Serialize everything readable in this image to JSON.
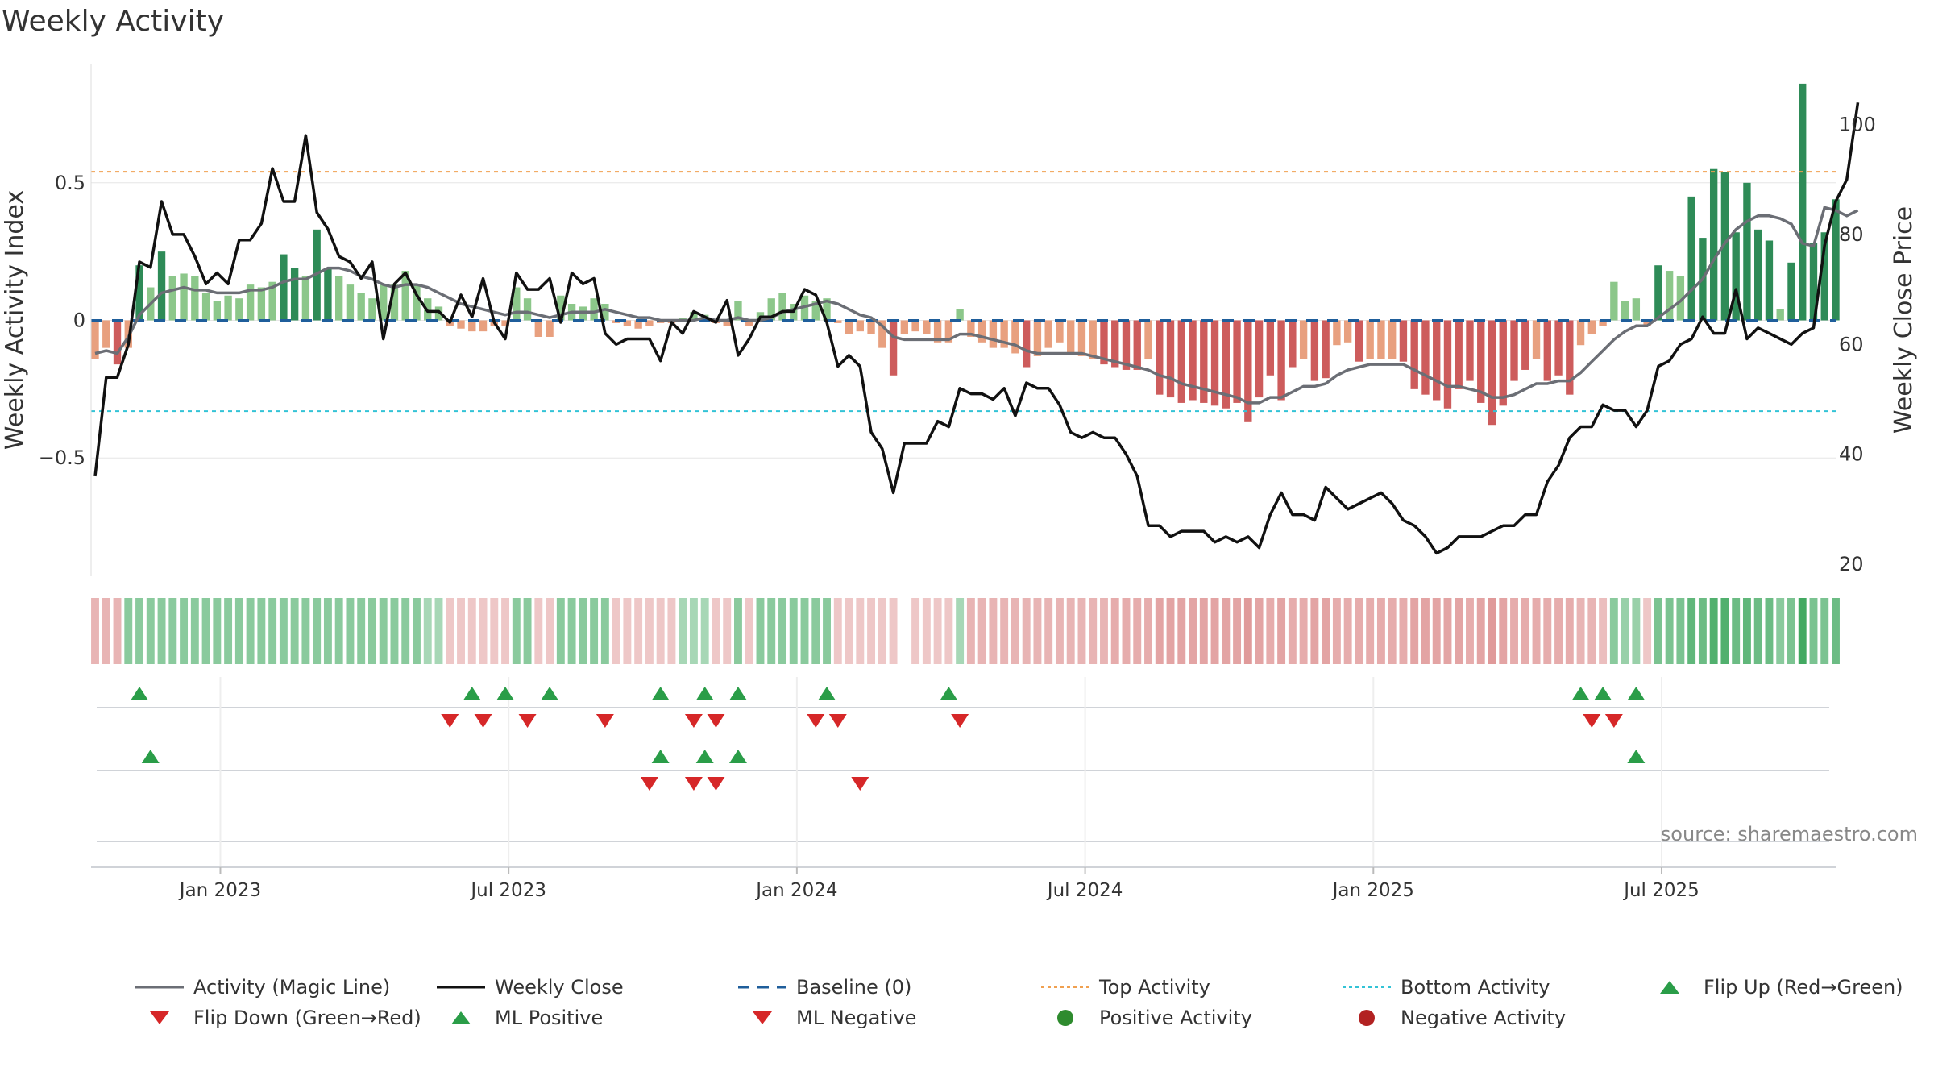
{
  "title": "Weekly Activity",
  "source": "source: sharemaestro.com",
  "colors": {
    "pos_strong": "#2e8b57",
    "pos_light": "#8cc78a",
    "neg_strong": "#cd5c5c",
    "neg_light": "#e8a07f",
    "magic": "#6b6e75",
    "close": "#111111",
    "baseline": "#1f5e9b",
    "top": "#f0a050",
    "bottom": "#33c3d6",
    "flip_up": "#2a9d48",
    "flip_down": "#d62728",
    "pos_dot": "#2e8b2e",
    "neg_dot": "#b22222"
  },
  "chart_data": {
    "type": "bar+line",
    "title": "Weekly Activity",
    "ylabel_left": "Weekly Activity Index",
    "ylabel_right": "Weekly Close Price",
    "yticks_left": [
      "0.5",
      "0",
      "−0.5"
    ],
    "yticks_right": [
      "100",
      "80",
      "60",
      "40",
      "20"
    ],
    "ylim_left": [
      -0.93,
      0.93
    ],
    "ylim_right": [
      20,
      108
    ],
    "xticks": [
      "Jan 2023",
      "Jul 2023",
      "Jan 2024",
      "Jul 2024",
      "Jan 2025",
      "Jul 2025"
    ],
    "top_activity": 0.54,
    "bottom_activity": -0.33,
    "activity": [
      -0.14,
      -0.1,
      -0.16,
      -0.1,
      0.2,
      0.12,
      0.25,
      0.16,
      0.17,
      0.16,
      0.1,
      0.07,
      0.09,
      0.08,
      0.13,
      0.12,
      0.14,
      0.24,
      0.19,
      0.16,
      0.33,
      0.19,
      0.16,
      0.13,
      0.1,
      0.08,
      0.13,
      0.13,
      0.18,
      0.13,
      0.08,
      0.05,
      -0.02,
      -0.03,
      -0.04,
      -0.04,
      -0.02,
      -0.02,
      0.12,
      0.08,
      -0.06,
      -0.06,
      0.09,
      0.06,
      0.05,
      0.08,
      0.06,
      -0.01,
      -0.02,
      -0.03,
      -0.02,
      -0.01,
      -0.01,
      0.01,
      0.03,
      0.02,
      -0.01,
      -0.02,
      0.07,
      -0.02,
      0.03,
      0.08,
      0.1,
      0.06,
      0.09,
      0.07,
      0.08,
      -0.01,
      -0.05,
      -0.04,
      -0.05,
      -0.1,
      -0.2,
      -0.05,
      -0.04,
      -0.05,
      -0.08,
      -0.08,
      0.04,
      -0.06,
      -0.08,
      -0.1,
      -0.1,
      -0.12,
      -0.17,
      -0.13,
      -0.1,
      -0.08,
      -0.12,
      -0.13,
      -0.14,
      -0.16,
      -0.17,
      -0.18,
      -0.18,
      -0.14,
      -0.27,
      -0.28,
      -0.3,
      -0.29,
      -0.3,
      -0.31,
      -0.32,
      -0.3,
      -0.37,
      -0.28,
      -0.2,
      -0.29,
      -0.17,
      -0.14,
      -0.22,
      -0.21,
      -0.09,
      -0.08,
      -0.15,
      -0.14,
      -0.14,
      -0.14,
      -0.15,
      -0.25,
      -0.27,
      -0.29,
      -0.32,
      -0.25,
      -0.22,
      -0.3,
      -0.38,
      -0.31,
      -0.22,
      -0.18,
      -0.14,
      -0.22,
      -0.2,
      -0.27,
      -0.09,
      -0.05,
      -0.02,
      0.14,
      0.07,
      0.08,
      -0.02,
      0.2,
      0.18,
      0.16,
      0.45,
      0.3,
      0.55,
      0.54,
      0.32,
      0.5,
      0.33,
      0.29,
      0.04,
      0.21,
      0.86,
      0.28,
      0.32,
      0.44
    ],
    "magic_line": [
      -0.12,
      -0.11,
      -0.12,
      -0.06,
      0.02,
      0.06,
      0.1,
      0.11,
      0.12,
      0.11,
      0.11,
      0.1,
      0.1,
      0.1,
      0.11,
      0.11,
      0.12,
      0.14,
      0.15,
      0.15,
      0.17,
      0.19,
      0.19,
      0.18,
      0.16,
      0.15,
      0.13,
      0.12,
      0.13,
      0.13,
      0.12,
      0.1,
      0.08,
      0.06,
      0.05,
      0.04,
      0.03,
      0.02,
      0.03,
      0.03,
      0.02,
      0.01,
      0.02,
      0.03,
      0.03,
      0.03,
      0.04,
      0.03,
      0.02,
      0.01,
      0.01,
      0.0,
      0.0,
      0.0,
      0.0,
      0.01,
      0.0,
      0.0,
      0.01,
      0.0,
      0.0,
      0.01,
      0.03,
      0.04,
      0.05,
      0.06,
      0.07,
      0.06,
      0.04,
      0.02,
      0.01,
      -0.02,
      -0.06,
      -0.07,
      -0.07,
      -0.07,
      -0.07,
      -0.07,
      -0.05,
      -0.05,
      -0.06,
      -0.07,
      -0.08,
      -0.09,
      -0.11,
      -0.12,
      -0.12,
      -0.12,
      -0.12,
      -0.12,
      -0.13,
      -0.14,
      -0.15,
      -0.16,
      -0.17,
      -0.18,
      -0.2,
      -0.21,
      -0.23,
      -0.24,
      -0.25,
      -0.26,
      -0.27,
      -0.28,
      -0.3,
      -0.3,
      -0.28,
      -0.28,
      -0.26,
      -0.24,
      -0.24,
      -0.23,
      -0.2,
      -0.18,
      -0.17,
      -0.16,
      -0.16,
      -0.16,
      -0.16,
      -0.18,
      -0.2,
      -0.22,
      -0.24,
      -0.24,
      -0.25,
      -0.26,
      -0.28,
      -0.28,
      -0.27,
      -0.25,
      -0.23,
      -0.23,
      -0.22,
      -0.22,
      -0.19,
      -0.15,
      -0.11,
      -0.07,
      -0.04,
      -0.02,
      -0.02,
      0.01,
      0.04,
      0.07,
      0.11,
      0.15,
      0.22,
      0.28,
      0.33,
      0.36,
      0.38,
      0.38,
      0.37,
      0.35,
      0.28,
      0.27,
      0.41,
      0.4,
      0.38,
      0.4
    ],
    "weekly_close": [
      36,
      54,
      54,
      60,
      75,
      74,
      86,
      80,
      80,
      76,
      71,
      73,
      71,
      79,
      79,
      82,
      92,
      86,
      86,
      98,
      84,
      81,
      76,
      75,
      72,
      75,
      61,
      71,
      73,
      69,
      66,
      66,
      64,
      69,
      65,
      72,
      64,
      61,
      73,
      70,
      70,
      72,
      64,
      73,
      71,
      72,
      62,
      60,
      61,
      61,
      61,
      57,
      64,
      62,
      66,
      65,
      64,
      68,
      58,
      61,
      65,
      65,
      66,
      66,
      70,
      69,
      64,
      56,
      58,
      56,
      44,
      41,
      33,
      42,
      42,
      42,
      46,
      45,
      52,
      51,
      51,
      50,
      52,
      47,
      53,
      52,
      52,
      49,
      44,
      43,
      44,
      43,
      43,
      40,
      36,
      27,
      27,
      25,
      26,
      26,
      26,
      24,
      25,
      24,
      25,
      23,
      29,
      33,
      29,
      29,
      28,
      34,
      32,
      30,
      31,
      32,
      33,
      31,
      28,
      27,
      25,
      22,
      23,
      25,
      25,
      25,
      26,
      27,
      27,
      29,
      29,
      35,
      38,
      43,
      45,
      45,
      49,
      48,
      48,
      45,
      48,
      56,
      57,
      60,
      61,
      65,
      62,
      62,
      70,
      61,
      63,
      62,
      61,
      60,
      62,
      63,
      78,
      86,
      90,
      104
    ],
    "strip": [
      -0.5,
      -0.5,
      -0.5,
      0.5,
      0.5,
      0.5,
      0.5,
      0.5,
      0.5,
      0.5,
      0.5,
      0.5,
      0.5,
      0.5,
      0.5,
      0.5,
      0.5,
      0.5,
      0.5,
      0.5,
      0.5,
      0.5,
      0.5,
      0.5,
      0.5,
      0.5,
      0.5,
      0.5,
      0.5,
      0.5,
      0.3,
      0.3,
      -0.3,
      -0.3,
      -0.3,
      -0.3,
      -0.3,
      -0.3,
      0.5,
      0.5,
      -0.3,
      -0.3,
      0.5,
      0.5,
      0.5,
      0.5,
      0.5,
      -0.3,
      -0.3,
      -0.3,
      -0.3,
      -0.3,
      -0.3,
      0.3,
      0.3,
      0.3,
      -0.3,
      -0.3,
      0.5,
      -0.3,
      0.5,
      0.5,
      0.5,
      0.5,
      0.5,
      0.5,
      0.5,
      -0.3,
      -0.3,
      -0.3,
      -0.3,
      -0.3,
      -0.3,
      0.0,
      -0.3,
      -0.3,
      -0.3,
      -0.3,
      0.3,
      -0.5,
      -0.5,
      -0.5,
      -0.5,
      -0.5,
      -0.5,
      -0.5,
      -0.5,
      -0.5,
      -0.5,
      -0.5,
      -0.5,
      -0.5,
      -0.6,
      -0.6,
      -0.6,
      -0.6,
      -0.7,
      -0.7,
      -0.7,
      -0.7,
      -0.7,
      -0.7,
      -0.7,
      -0.7,
      -0.8,
      -0.7,
      -0.6,
      -0.7,
      -0.6,
      -0.6,
      -0.7,
      -0.7,
      -0.6,
      -0.6,
      -0.6,
      -0.6,
      -0.6,
      -0.6,
      -0.6,
      -0.7,
      -0.7,
      -0.7,
      -0.7,
      -0.7,
      -0.6,
      -0.7,
      -0.8,
      -0.7,
      -0.6,
      -0.6,
      -0.6,
      -0.6,
      -0.6,
      -0.6,
      -0.5,
      -0.5,
      -0.4,
      0.5,
      0.4,
      0.4,
      -0.3,
      0.6,
      0.6,
      0.6,
      0.8,
      0.7,
      0.9,
      0.9,
      0.7,
      0.8,
      0.7,
      0.7,
      0.5,
      0.6,
      1.0,
      0.6,
      0.6,
      0.7
    ],
    "flip_up_weeks": [
      4,
      34,
      37,
      41,
      51,
      55,
      58,
      66,
      77,
      134,
      136,
      139
    ],
    "flip_down_weeks": [
      32,
      35,
      39,
      46,
      54,
      56,
      65,
      67,
      78,
      135,
      137
    ],
    "ml_positive_weeks": [
      5,
      51,
      55,
      58,
      139
    ],
    "ml_negative_weeks": [
      50,
      54,
      56,
      69
    ]
  },
  "legend": {
    "magic": "Activity (Magic Line)",
    "close": "Weekly Close",
    "baseline": "Baseline (0)",
    "top": "Top Activity",
    "bottom": "Bottom Activity",
    "flip_up": "Flip Up (Red→Green)",
    "flip_down": "Flip Down (Green→Red)",
    "ml_pos": "ML Positive",
    "ml_neg": "ML Negative",
    "pos_act": "Positive Activity",
    "neg_act": "Negative Activity"
  }
}
